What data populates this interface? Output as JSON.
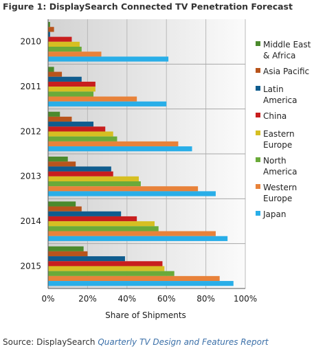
{
  "figure_title": "Figure 1:  DisplaySearch Connected TV Penetration Forecast",
  "source": {
    "prefix": "Source: DisplaySearch ",
    "report": "Quarterly TV Design and Features Report"
  },
  "chart_data": {
    "type": "bar",
    "orientation": "horizontal",
    "categories": [
      "2010",
      "2011",
      "2012",
      "2013",
      "2014",
      "2015"
    ],
    "xlabel": "Share of Shipments",
    "ylabel": "",
    "xlim": [
      0,
      100
    ],
    "x_ticks": [
      "0%",
      "20%",
      "40%",
      "60%",
      "80%",
      "100%"
    ],
    "grid": true,
    "legend_position": "right",
    "series": [
      {
        "name": "Middle East & Africa",
        "legend_lines": [
          "Middle East",
          "& Africa"
        ],
        "color": "#4b8a2d",
        "values": [
          1,
          3,
          6,
          10,
          14,
          18
        ]
      },
      {
        "name": "Asia Pacific",
        "legend_lines": [
          "Asia Pacific"
        ],
        "color": "#b8541c",
        "values": [
          3,
          7,
          12,
          14,
          17,
          20
        ]
      },
      {
        "name": "Latin America",
        "legend_lines": [
          "Latin",
          "America"
        ],
        "color": "#0f5c8e",
        "values": [
          1,
          17,
          23,
          32,
          37,
          39
        ]
      },
      {
        "name": "China",
        "legend_lines": [
          "China"
        ],
        "color": "#c81e1e",
        "values": [
          12,
          24,
          29,
          33,
          45,
          58
        ]
      },
      {
        "name": "Eastern Europe",
        "legend_lines": [
          "Eastern",
          "Europe"
        ],
        "color": "#d6bf22",
        "values": [
          16,
          24,
          33,
          46,
          54,
          59
        ]
      },
      {
        "name": "North America",
        "legend_lines": [
          "North",
          "America"
        ],
        "color": "#6aaa3a",
        "values": [
          17,
          23,
          35,
          47,
          56,
          64
        ]
      },
      {
        "name": "Western Europe",
        "legend_lines": [
          "Western",
          "Europe"
        ],
        "color": "#e8823a",
        "values": [
          27,
          45,
          66,
          76,
          85,
          87
        ]
      },
      {
        "name": "Japan",
        "legend_lines": [
          "Japan"
        ],
        "color": "#29aee8",
        "values": [
          61,
          60,
          73,
          85,
          91,
          94
        ]
      }
    ]
  }
}
